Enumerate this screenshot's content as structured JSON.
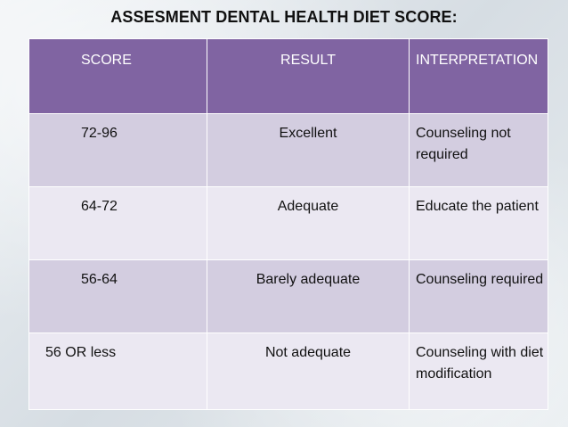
{
  "title": "ASSESMENT DENTAL HEALTH DIET SCORE:",
  "table": {
    "headers": [
      "SCORE",
      "RESULT",
      "INTERPRETATION"
    ],
    "rows": [
      {
        "score": "72-96",
        "result": "Excellent",
        "interpretation": "Counseling not required"
      },
      {
        "score": "64-72",
        "result": "Adequate",
        "interpretation": "Educate the patient"
      },
      {
        "score": "56-64",
        "result": "Barely adequate",
        "interpretation": "Counseling required"
      },
      {
        "score": "56 OR less",
        "result": "Not adequate",
        "interpretation": "Counseling with diet modification"
      }
    ]
  }
}
